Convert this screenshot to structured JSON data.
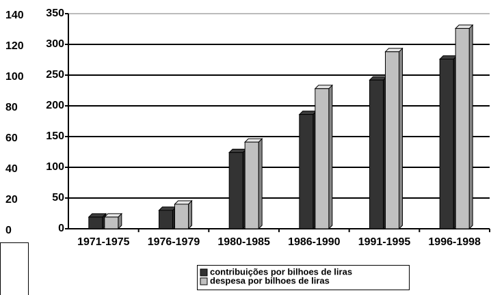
{
  "chart_data": {
    "type": "bar",
    "categories": [
      "1971-1975",
      "1976-1979",
      "1980-1985",
      "1986-1990",
      "1991-1995",
      "1996-1998"
    ],
    "series": [
      {
        "name": "contribuições por bilhoes de liras",
        "color": "#333333",
        "values": [
          19,
          30,
          124,
          186,
          242,
          276
        ]
      },
      {
        "name": "despesa por bilhoes de liras",
        "color": "#c0c0c0",
        "values": [
          19,
          40,
          141,
          228,
          288,
          326
        ]
      }
    ],
    "ylim": [
      0,
      350
    ],
    "yticks": [
      0,
      50,
      100,
      150,
      200,
      250,
      300,
      350
    ],
    "y2lim": [
      0,
      140
    ],
    "y2ticks": [
      0,
      20,
      40,
      60,
      80,
      100,
      120,
      140
    ],
    "grid": true,
    "legend": "bottom"
  }
}
